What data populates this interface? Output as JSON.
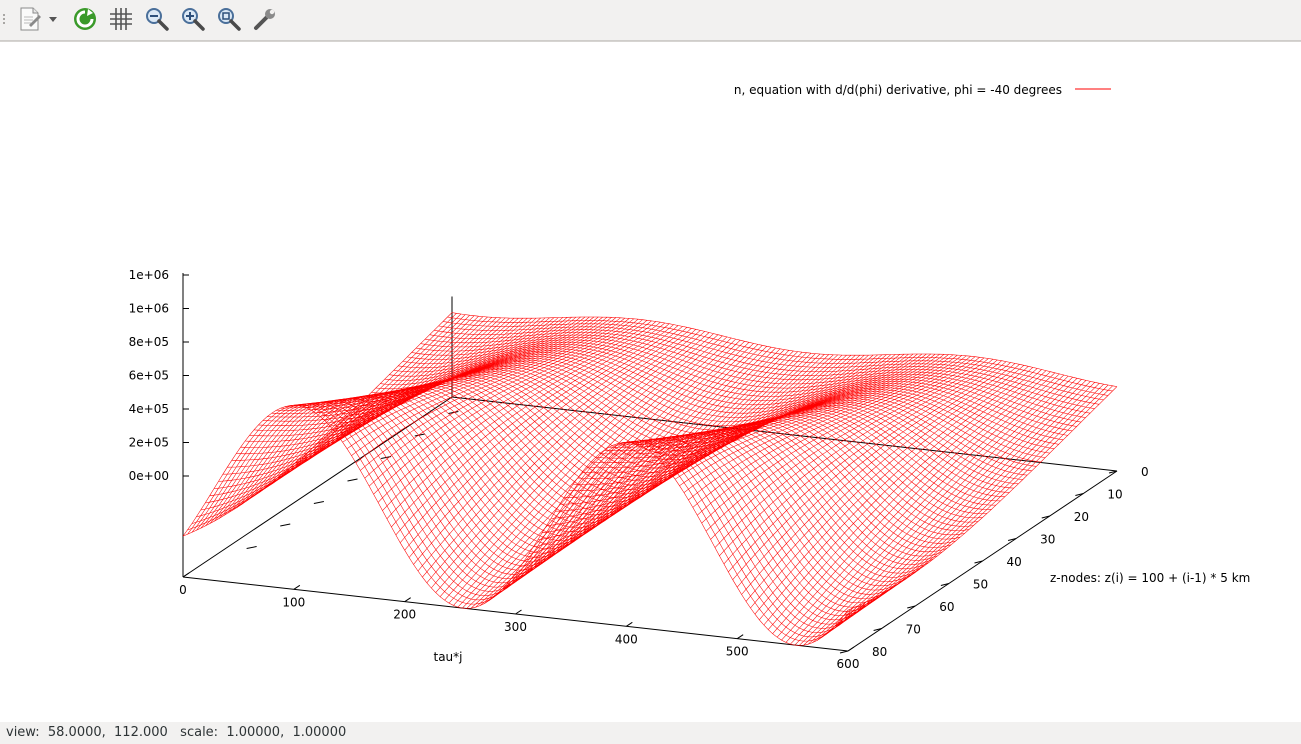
{
  "toolbar": {
    "buttons": [
      {
        "name": "export-icon"
      },
      {
        "name": "dropdown-arrow-icon"
      },
      {
        "name": "replot-icon"
      },
      {
        "name": "grid-icon"
      },
      {
        "name": "zoom-out-icon"
      },
      {
        "name": "zoom-in-icon"
      },
      {
        "name": "zoom-fit-icon"
      },
      {
        "name": "settings-wrench-icon"
      }
    ]
  },
  "status": {
    "text": "view:  58.0000,  112.000   scale:  1.00000,  1.00000"
  },
  "chart_data": {
    "type": "surface",
    "legend": {
      "label": "n, equation with d/d(phi) derivative, phi = -40 degrees",
      "placement": "top-right"
    },
    "color": "#ff0000",
    "xlabel": "tau*j",
    "ylabel": "z-nodes: z(i) = 100 + (i-1) * 5 km",
    "zlabel": "",
    "xlim": [
      0,
      600
    ],
    "ylim": [
      0,
      80
    ],
    "zlim": [
      0,
      1200000
    ],
    "xticks": [
      "0",
      "100",
      "200",
      "300",
      "400",
      "500",
      "600"
    ],
    "yticks": [
      "0",
      "10",
      "20",
      "30",
      "40",
      "50",
      "60",
      "70",
      "80"
    ],
    "zticks": [
      "0e+00",
      "2e+05",
      "4e+05",
      "6e+05",
      "8e+05",
      "1e+06",
      "1e+06"
    ],
    "grid": false,
    "surface_shape": {
      "period_x": 300,
      "peaks_x": [
        200,
        320,
        500
      ],
      "near_edge_z_max": 1100000,
      "far_edge_z": 500000
    }
  }
}
